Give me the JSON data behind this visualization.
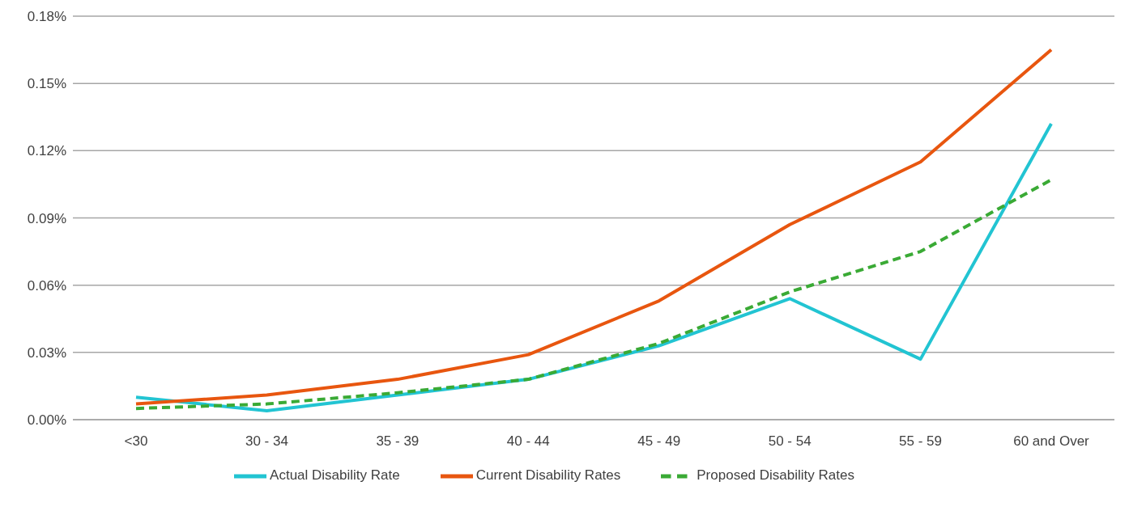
{
  "chart_data": {
    "type": "line",
    "categories": [
      "<30",
      "30 - 34",
      "35 - 39",
      "40 - 44",
      "45 - 49",
      "50 - 54",
      "55 - 59",
      "60 and Over"
    ],
    "series": [
      {
        "name": "Actual Disability Rate",
        "color": "#22c4d2",
        "values": [
          0.01,
          0.004,
          0.011,
          0.018,
          0.033,
          0.054,
          0.027,
          0.132
        ]
      },
      {
        "name": "Current Disability Rates",
        "color": "#e8560f",
        "values": [
          0.007,
          0.011,
          0.018,
          0.029,
          0.053,
          0.087,
          0.115,
          0.165
        ]
      },
      {
        "name": "Proposed Disability Rates",
        "color": "#3aaa35",
        "line_style": "dashed",
        "values": [
          0.005,
          0.007,
          0.012,
          0.018,
          0.034,
          0.057,
          0.075,
          0.107
        ]
      }
    ],
    "ylim": [
      0,
      0.18
    ],
    "yticks": [
      {
        "value": 0,
        "label": "0.00%"
      },
      {
        "value": 0.03,
        "label": "0.03%"
      },
      {
        "value": 0.06,
        "label": "0.06%"
      },
      {
        "value": 0.09,
        "label": "0.09%"
      },
      {
        "value": 0.12,
        "label": "0.12%"
      },
      {
        "value": 0.15,
        "label": "0.15%"
      },
      {
        "value": 0.18,
        "label": "0.18%"
      }
    ],
    "grid": "y",
    "legend": "bottom",
    "marker": "none",
    "line_style": "solid"
  }
}
